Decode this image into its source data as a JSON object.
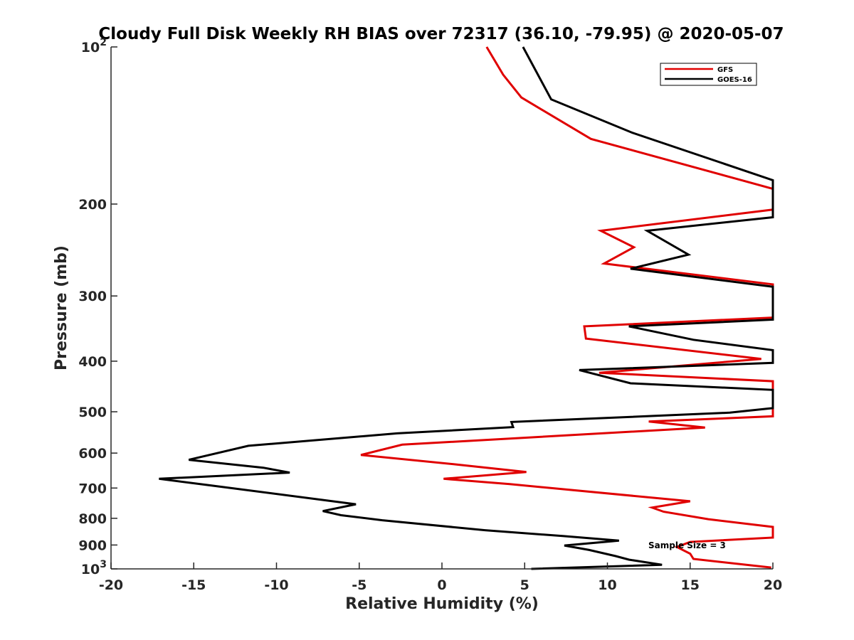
{
  "chart_data": {
    "type": "line",
    "title": "Cloudy Full Disk Weekly RH BIAS over 72317 (36.10, -79.95) @ 2020-05-07",
    "xlabel": "Relative Humidity (%)",
    "ylabel": "Pressure (mb)",
    "xlim": [
      -20,
      20
    ],
    "ylim": [
      100,
      1000
    ],
    "y_scale": "log",
    "y_reversed": true,
    "grid": false,
    "legend_position": "top-right",
    "x_ticks": [
      -20,
      -15,
      -10,
      -5,
      0,
      5,
      10,
      15,
      20
    ],
    "x_tick_labels": [
      "-20",
      "-15",
      "-10",
      "-5",
      "0",
      "5",
      "10",
      "15",
      "20"
    ],
    "y_ticks": [
      100,
      200,
      300,
      400,
      500,
      600,
      700,
      800,
      900,
      1000
    ],
    "y_tick_labels": [
      {
        "base": "10",
        "exp": "2"
      },
      {
        "base": "200",
        "exp": ""
      },
      {
        "base": "300",
        "exp": ""
      },
      {
        "base": "400",
        "exp": ""
      },
      {
        "base": "500",
        "exp": ""
      },
      {
        "base": "600",
        "exp": ""
      },
      {
        "base": "700",
        "exp": ""
      },
      {
        "base": "800",
        "exp": ""
      },
      {
        "base": "900",
        "exp": ""
      },
      {
        "base": "10",
        "exp": "3"
      }
    ],
    "annotation": "Sample Size = 3",
    "series": [
      {
        "name": "GFS",
        "color": "#e00000",
        "points": [
          [
            2.7,
            100
          ],
          [
            3.7,
            113
          ],
          [
            4.8,
            125
          ],
          [
            9.0,
            150
          ],
          [
            20.0,
            187
          ],
          [
            20.0,
            205
          ],
          [
            9.6,
            225
          ],
          [
            11.6,
            242
          ],
          [
            9.8,
            260
          ],
          [
            20.0,
            285
          ],
          [
            20.0,
            330
          ],
          [
            8.6,
            343
          ],
          [
            8.7,
            362
          ],
          [
            19.3,
            396
          ],
          [
            9.5,
            421
          ],
          [
            20.0,
            437
          ],
          [
            20.0,
            510
          ],
          [
            12.5,
            522
          ],
          [
            15.9,
            536
          ],
          [
            -2.4,
            578
          ],
          [
            -4.9,
            605
          ],
          [
            0.9,
            631
          ],
          [
            5.1,
            652
          ],
          [
            0.1,
            672
          ],
          [
            4.1,
            688
          ],
          [
            15.0,
            742
          ],
          [
            12.7,
            763
          ],
          [
            13.4,
            777
          ],
          [
            16.1,
            803
          ],
          [
            20.0,
            831
          ],
          [
            20.0,
            871
          ],
          [
            15.0,
            888
          ],
          [
            14.2,
            908
          ],
          [
            15.0,
            935
          ],
          [
            15.2,
            957
          ],
          [
            19.9,
            994
          ]
        ]
      },
      {
        "name": "GOES-16",
        "color": "#000000",
        "points": [
          [
            4.9,
            100
          ],
          [
            6.6,
            126
          ],
          [
            11.5,
            146
          ],
          [
            20.0,
            180
          ],
          [
            20.0,
            212
          ],
          [
            12.4,
            225
          ],
          [
            14.9,
            250
          ],
          [
            11.4,
            266
          ],
          [
            20.0,
            288
          ],
          [
            20.0,
            333
          ],
          [
            11.3,
            343
          ],
          [
            15.2,
            364
          ],
          [
            20.0,
            381
          ],
          [
            20.0,
            403
          ],
          [
            8.3,
            416
          ],
          [
            11.4,
            441
          ],
          [
            20.0,
            454
          ],
          [
            20.0,
            492
          ],
          [
            17.4,
            502
          ],
          [
            4.2,
            523
          ],
          [
            4.3,
            535
          ],
          [
            -2.7,
            550
          ],
          [
            -11.7,
            581
          ],
          [
            -15.3,
            618
          ],
          [
            -10.8,
            640
          ],
          [
            -9.2,
            654
          ],
          [
            -17.1,
            672
          ],
          [
            -14.1,
            691
          ],
          [
            -5.2,
            752
          ],
          [
            -7.2,
            775
          ],
          [
            -6.1,
            789
          ],
          [
            -3.6,
            807
          ],
          [
            2.6,
            843
          ],
          [
            7.3,
            865
          ],
          [
            10.7,
            883
          ],
          [
            7.4,
            902
          ],
          [
            8.9,
            920
          ],
          [
            10.5,
            945
          ],
          [
            11.3,
            960
          ],
          [
            13.3,
            982
          ],
          [
            5.4,
            1000
          ]
        ]
      }
    ]
  }
}
